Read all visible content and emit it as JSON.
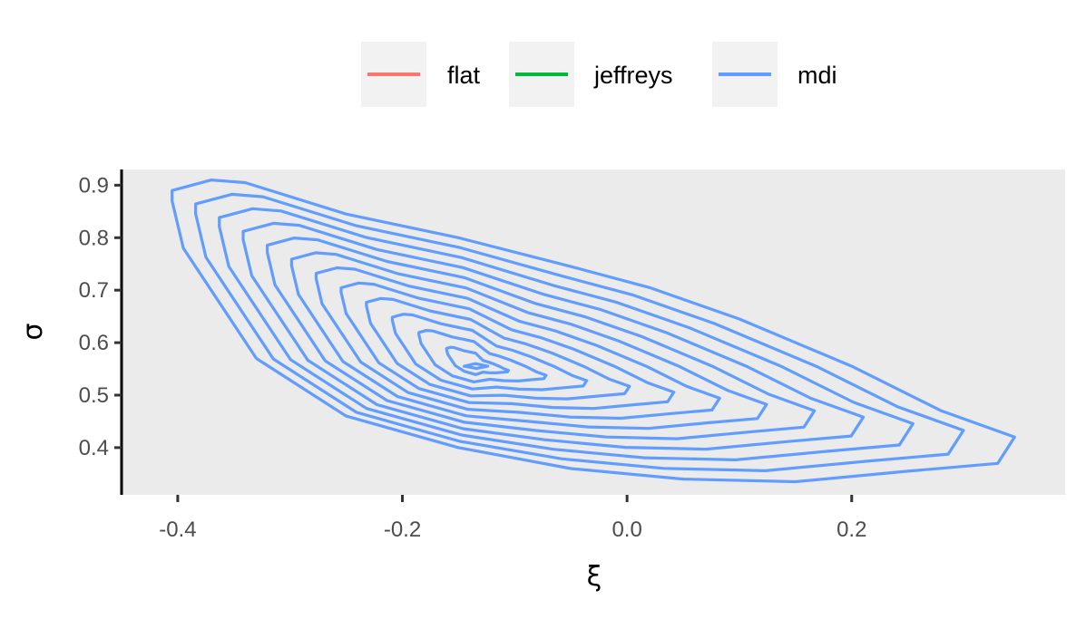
{
  "chart_data": {
    "type": "contour",
    "title": "",
    "xlabel": "ξ",
    "ylabel": "σ",
    "xlim": [
      -0.45,
      0.39
    ],
    "ylim": [
      0.31,
      0.93
    ],
    "x_ticks": [
      -0.4,
      -0.2,
      0.0,
      0.2
    ],
    "x_tick_labels": [
      "-0.4",
      "-0.2",
      "0.0",
      "0.2"
    ],
    "y_ticks": [
      0.4,
      0.5,
      0.6,
      0.7,
      0.8,
      0.9
    ],
    "y_tick_labels": [
      "0.4",
      "0.5",
      "0.6",
      "0.7",
      "0.8",
      "0.9"
    ],
    "grid": false,
    "legend": {
      "position": "top",
      "entries": [
        {
          "name": "flat",
          "color": "#F8766D"
        },
        {
          "name": "jeffreys",
          "color": "#00BA38"
        },
        {
          "name": "mdi",
          "color": "#619CFF"
        }
      ]
    },
    "panel_background": "#EBEBEB",
    "series": [
      {
        "name": "mdi",
        "color": "#619CFF",
        "contour_levels": 12,
        "mode": [
          -0.133,
          0.555
        ],
        "outer_contour": [
          [
            -0.405,
            0.89
          ],
          [
            -0.37,
            0.91
          ],
          [
            -0.34,
            0.905
          ],
          [
            -0.25,
            0.845
          ],
          [
            -0.15,
            0.8
          ],
          [
            -0.05,
            0.745
          ],
          [
            0.02,
            0.705
          ],
          [
            0.1,
            0.645
          ],
          [
            0.2,
            0.555
          ],
          [
            0.28,
            0.47
          ],
          [
            0.345,
            0.42
          ],
          [
            0.33,
            0.37
          ],
          [
            0.25,
            0.355
          ],
          [
            0.15,
            0.335
          ],
          [
            0.05,
            0.34
          ],
          [
            -0.05,
            0.36
          ],
          [
            -0.15,
            0.4
          ],
          [
            -0.25,
            0.46
          ],
          [
            -0.33,
            0.57
          ],
          [
            -0.395,
            0.78
          ],
          [
            -0.405,
            0.87
          ]
        ],
        "inner_contour": [
          [
            -0.145,
            0.555
          ],
          [
            -0.135,
            0.56
          ],
          [
            -0.124,
            0.555
          ],
          [
            -0.134,
            0.551
          ],
          [
            -0.145,
            0.555
          ]
        ]
      }
    ]
  }
}
